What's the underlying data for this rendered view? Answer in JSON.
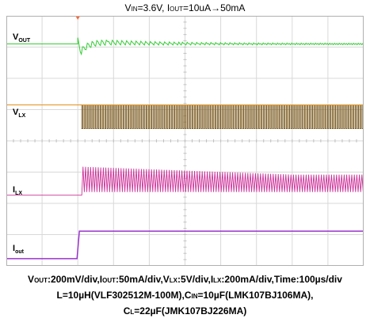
{
  "title": {
    "parts": [
      {
        "t": "V",
        "sub": false
      },
      {
        "t": "IN",
        "sub": true
      },
      {
        "t": "=3.6V, I",
        "sub": false
      },
      {
        "t": "OUT",
        "sub": true
      },
      {
        "t": "=10uA→50mA",
        "sub": false
      }
    ]
  },
  "chart_data": {
    "type": "line",
    "description_of_axes": "oscilloscope capture, 10 horizontal divisions",
    "x_unit": "µs",
    "x_per_div": 100,
    "x_range": [
      0,
      1000
    ],
    "event_x": 200,
    "grid": true,
    "channels": [
      {
        "key": "vout",
        "label": [
          {
            "t": "V",
            "sub": false
          },
          {
            "t": "OUT",
            "sub": true
          }
        ],
        "color": "#33cc33",
        "scale": "200mV/div",
        "baseline_div": 0.9,
        "behavior": "flat until load step, dips then recovers with ripple"
      },
      {
        "key": "vlx",
        "label": [
          {
            "t": "V",
            "sub": false
          },
          {
            "t": "LX",
            "sub": true
          }
        ],
        "color": "#e69a2e",
        "switch_color": "#7a5a20",
        "scale": "5V/div",
        "baseline_div": 2.85,
        "behavior": "flat until load step, then continuous switching"
      },
      {
        "key": "ilx",
        "label": [
          {
            "t": "I",
            "sub": false
          },
          {
            "t": "LX",
            "sub": true
          }
        ],
        "color": "#cc3399",
        "scale": "200mA/div",
        "baseline_div": 4.55,
        "behavior": "zero until load step, then triangular ripple"
      },
      {
        "key": "iout",
        "label": [
          {
            "t": "I",
            "sub": false
          },
          {
            "t": "out",
            "sub": true
          }
        ],
        "color": "#9933cc",
        "scale": "50mA/div",
        "baseline_div": 6.25,
        "step_div": 1.6,
        "behavior": "steps up at load step"
      }
    ]
  },
  "caption": {
    "lines": [
      [
        {
          "t": "V",
          "sub": false
        },
        {
          "t": "OUT",
          "sub": true
        },
        {
          "t": ":200mV/div,I",
          "sub": false
        },
        {
          "t": "OUT",
          "sub": true
        },
        {
          "t": ":50mA/div,V",
          "sub": false
        },
        {
          "t": "LX",
          "sub": true
        },
        {
          "t": ":5V/div,I",
          "sub": false
        },
        {
          "t": "LX",
          "sub": true
        },
        {
          "t": ":200mA/div,Time:100µs/div",
          "sub": false
        }
      ],
      [
        {
          "t": "L=10µH(VLF302512M-100M),C",
          "sub": false
        },
        {
          "t": "IN",
          "sub": true
        },
        {
          "t": "=10µF(LMK107BJ106MA),",
          "sub": false
        }
      ],
      [
        {
          "t": "C",
          "sub": false
        },
        {
          "t": "L",
          "sub": true
        },
        {
          "t": "=22µF(JMK107BJ226MA)",
          "sub": false
        }
      ]
    ]
  }
}
